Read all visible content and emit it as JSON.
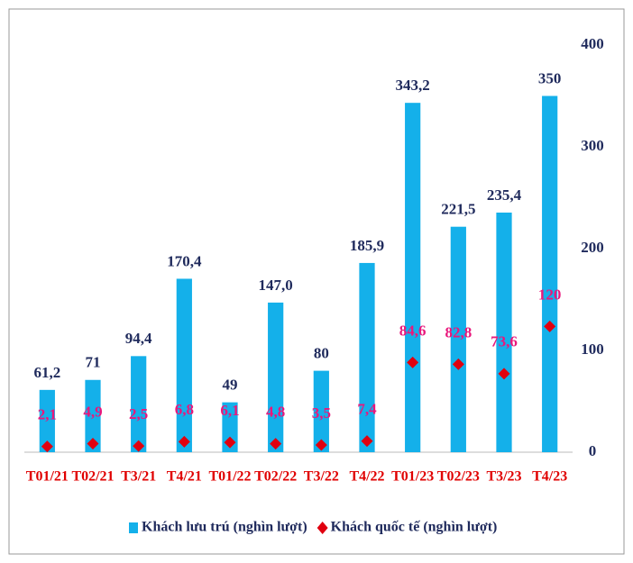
{
  "chart_data": {
    "type": "bar",
    "categories": [
      "T01/21",
      "T02/21",
      "T3/21",
      "T4/21",
      "T01/22",
      "T02/22",
      "T3/22",
      "T4/22",
      "T01/23",
      "T02/23",
      "T3/23",
      "T4/23"
    ],
    "series": [
      {
        "name": "Khách lưu trú (nghìn lượt)",
        "type": "bar",
        "color": "#14b0ea",
        "values": [
          61.2,
          71,
          94.4,
          170.4,
          49,
          147.0,
          80,
          185.9,
          343.2,
          221.5,
          235.4,
          350
        ],
        "value_labels": [
          "61,2",
          "71",
          "94,4",
          "170,4",
          "49",
          "147,0",
          "80",
          "185,9",
          "343,2",
          "221,5",
          "235,4",
          "350"
        ]
      },
      {
        "name": "Khách quốc tế (nghìn lượt)",
        "type": "scatter",
        "color": "#e0000f",
        "values": [
          2.1,
          4.9,
          2.5,
          6.8,
          6.1,
          4.8,
          3.5,
          7.4,
          84.6,
          82.8,
          73.6,
          120
        ],
        "value_labels": [
          "2,1",
          "4,9",
          "2,5",
          "6,8",
          "6,1",
          "4,8",
          "3,5",
          "7,4",
          "84,6",
          "82,8",
          "73,6",
          "120"
        ]
      }
    ],
    "ylim": [
      0,
      400
    ],
    "yticks": [
      0,
      100,
      200,
      300,
      400
    ],
    "y_axis_side": "right",
    "grid": false
  }
}
